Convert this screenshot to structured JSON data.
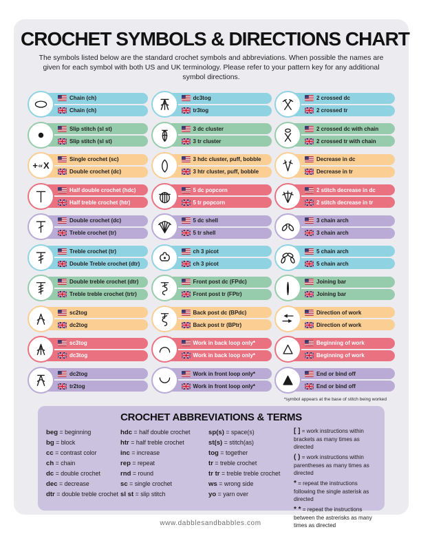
{
  "title": "CROCHET SYMBOLS & DIRECTIONS CHART",
  "subtitle": "The symbols listed below are the standard crochet symbols and abbreviations. When possible the names are given for each symbol with both US and UK terminology. Please refer to your pattern key for any additional symbol directions.",
  "colors": {
    "blue": "#8FD3E2",
    "green": "#96CCAC",
    "orange": "#FBCE93",
    "red": "#E97180",
    "purple": "#B9AAD6",
    "panel": "#ECECF0",
    "abbr_panel": "#CBC2DF"
  },
  "symbol_columns": [
    [
      {
        "symbol": "chain",
        "color": "blue",
        "us": "Chain (ch)",
        "uk": "Chain (ch)"
      },
      {
        "symbol": "slip-stitch",
        "color": "green",
        "us": "Slip stitch (sl st)",
        "uk": "Slip stitch (sl st)"
      },
      {
        "symbol": "single-crochet-plus-x",
        "color": "orange",
        "us": "Single crochet (sc)",
        "uk": "Double crochet (dc)"
      },
      {
        "symbol": "half-double-crochet",
        "color": "red",
        "us": "Half double crochet (hdc)",
        "uk": "Half treble crochet (htr)"
      },
      {
        "symbol": "double-crochet",
        "color": "purple",
        "us": "Double crochet (dc)",
        "uk": "Treble crochet (tr)"
      },
      {
        "symbol": "treble-crochet",
        "color": "blue",
        "us": "Treble crochet (tr)",
        "uk": "Double Treble crochet (dtr)"
      },
      {
        "symbol": "double-treble-crochet",
        "color": "green",
        "us": "Double treble crochet (dtr)",
        "uk": "Treble treble crochet (trtr)"
      },
      {
        "symbol": "sc2tog",
        "color": "orange",
        "us": "sc2tog",
        "uk": "dc2tog"
      },
      {
        "symbol": "sc3tog",
        "color": "red",
        "us": "sc3tog",
        "uk": "dc3tog"
      },
      {
        "symbol": "dc2tog",
        "color": "purple",
        "us": "dc2tog",
        "uk": "tr2tog"
      }
    ],
    [
      {
        "symbol": "dc3tog",
        "color": "blue",
        "us": "dc3tog",
        "uk": "tr3tog"
      },
      {
        "symbol": "cluster-3dc",
        "color": "green",
        "us": "3 dc cluster",
        "uk": "3 tr cluster"
      },
      {
        "symbol": "puff-bobble",
        "color": "orange",
        "us": "3 hdc cluster, puff, bobble",
        "uk": "3 htr cluster, puff, bobble"
      },
      {
        "symbol": "popcorn-5dc",
        "color": "red",
        "us": "5 dc popcorn",
        "uk": "5 tr popcorn"
      },
      {
        "symbol": "shell-5dc",
        "color": "purple",
        "us": "5 dc shell",
        "uk": "5 tr shell"
      },
      {
        "symbol": "picot-ch3",
        "color": "blue",
        "us": "ch 3 picot",
        "uk": "ch 3 picot"
      },
      {
        "symbol": "front-post",
        "color": "green",
        "us": "Front post dc (FPdc)",
        "uk": "Front post tr (FPtr)"
      },
      {
        "symbol": "back-post",
        "color": "orange",
        "us": "Back post dc (BPdc)",
        "uk": "Back post tr (BPtr)"
      },
      {
        "symbol": "back-loop",
        "color": "red",
        "us": "Work in back loop only*",
        "uk": "Work in back loop only*"
      },
      {
        "symbol": "front-loop",
        "color": "purple",
        "us": "Work in front loop only*",
        "uk": "Work in front loop only*"
      }
    ],
    [
      {
        "symbol": "crossed-2dc",
        "color": "blue",
        "us": "2 crossed dc",
        "uk": "2 crossed tr"
      },
      {
        "symbol": "crossed-2dc-chain",
        "color": "green",
        "us": "2 crossed dc with chain",
        "uk": "2 crossed tr with chain"
      },
      {
        "symbol": "decrease-dc",
        "color": "orange",
        "us": "Decrease in dc",
        "uk": "Decrease in tr"
      },
      {
        "symbol": "decrease-2st",
        "color": "red",
        "us": "2 stitch decrease in dc",
        "uk": "2 stitch decrease in tr"
      },
      {
        "symbol": "chain-arch-3",
        "color": "purple",
        "us": "3 chain arch",
        "uk": "3 chain arch"
      },
      {
        "symbol": "chain-arch-5",
        "color": "blue",
        "us": "5 chain arch",
        "uk": "5 chain arch"
      },
      {
        "symbol": "joining-bar",
        "color": "green",
        "us": "Joining bar",
        "uk": "Joining bar"
      },
      {
        "symbol": "direction-of-work",
        "color": "orange",
        "us": "Direction of work",
        "uk": "Direction of work"
      },
      {
        "symbol": "beginning-of-work",
        "color": "red",
        "us": "Beginning of work",
        "uk": "Beginning of work"
      },
      {
        "symbol": "end-bind-off",
        "color": "purple",
        "us": "End or bind off",
        "uk": "End or bind off"
      }
    ]
  ],
  "footnote": "*symbol appears at the base of stitch being worked",
  "abbreviations": {
    "title": "CROCHET ABBREVIATIONS & TERMS",
    "columns": [
      [
        {
          "term": "beg",
          "def": "beginning"
        },
        {
          "term": "bg",
          "def": "block"
        },
        {
          "term": "cc",
          "def": "contrast color"
        },
        {
          "term": "ch",
          "def": "chain"
        },
        {
          "term": "dc",
          "def": "double crochet"
        },
        {
          "term": "dec",
          "def": "decrease"
        },
        {
          "term": "dtr",
          "def": "double treble crochet"
        }
      ],
      [
        {
          "term": "hdc",
          "def": "half double crochet"
        },
        {
          "term": "htr",
          "def": "half treble crochet"
        },
        {
          "term": "inc",
          "def": "increase"
        },
        {
          "term": "rep",
          "def": "repeat"
        },
        {
          "term": "rnd",
          "def": "round"
        },
        {
          "term": "sc",
          "def": "single crochet"
        },
        {
          "term": "sl st",
          "def": "slip stitch"
        }
      ],
      [
        {
          "term": "sp(s)",
          "def": "space(s)"
        },
        {
          "term": "st(s)",
          "def": "stitch(as)"
        },
        {
          "term": "tog",
          "def": "together"
        },
        {
          "term": "tr",
          "def": "treble crochet"
        },
        {
          "term": "tr tr",
          "def": "treble treble crochet"
        },
        {
          "term": "ws",
          "def": "wrong side"
        },
        {
          "term": "yo",
          "def": "yarn over"
        }
      ]
    ],
    "notes": [
      {
        "term": "[ ]",
        "def": "work instructions within brackets as many times as directed"
      },
      {
        "term": "( )",
        "def": "work instructions within parentheses as many times as directed"
      },
      {
        "term": "*",
        "def": "repeat the instructions following the single asterisk as directed"
      },
      {
        "term": "* *",
        "def": "repeat the instructions between the astrerisks as many times as directed"
      }
    ]
  },
  "footer": "www.dabblesandbabbles.com"
}
